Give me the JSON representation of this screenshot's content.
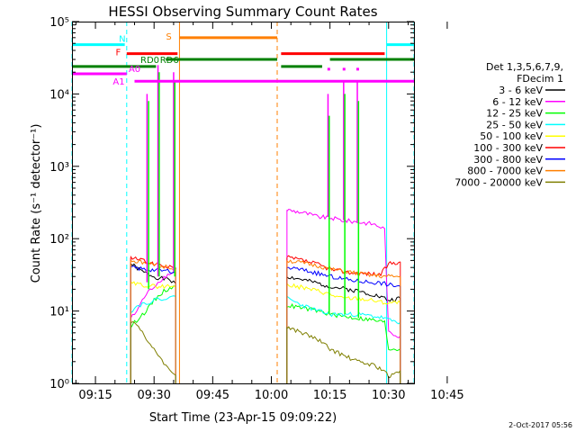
{
  "chart_data": {
    "type": "line",
    "title": "HESSI Observing Summary Count Rates",
    "xlabel": "Start Time (23-Apr-15 09:09:22)",
    "ylabel": "Count Rate (s⁻¹ detector⁻¹)",
    "yscale": "log",
    "ylim": [
      1,
      100000
    ],
    "xlim_minutes": [
      9.0,
      96.5
    ],
    "x_ticks": [
      "09:15",
      "09:30",
      "09:45",
      "10:00",
      "10:15",
      "10:30",
      "10:45"
    ],
    "x_tick_minutes": [
      15,
      30,
      45,
      60,
      75,
      90,
      105
    ],
    "y_ticks": [
      "10⁰",
      "10¹",
      "10²",
      "10³",
      "10⁴",
      "10⁵"
    ],
    "legend": {
      "header_lines": [
        "Det 1,3,5,6,7,9,",
        "FDecim 1"
      ],
      "placement": "right"
    },
    "series": [
      {
        "name": "3 - 6 keV",
        "color": "#000000",
        "segments": [
          [
            [
              24,
              45
            ],
            [
              27,
              35
            ],
            [
              30,
              30
            ],
            [
              32,
              28
            ],
            [
              34,
              27
            ],
            [
              35.5,
              24
            ]
          ],
          [
            [
              64,
              30
            ],
            [
              68,
              27
            ],
            [
              72,
              24
            ],
            [
              75,
              22
            ],
            [
              77,
              21
            ],
            [
              82,
              19
            ],
            [
              86,
              17
            ],
            [
              89,
              15
            ],
            [
              90,
              14
            ],
            [
              93,
              15
            ]
          ]
        ]
      },
      {
        "name": "6 - 12 keV",
        "color": "#ff00ff",
        "segments": [
          [
            [
              24,
              8
            ],
            [
              25,
              9
            ],
            [
              26,
              11
            ],
            [
              27,
              14
            ],
            [
              28,
              17
            ],
            [
              30,
              22
            ],
            [
              32,
              28
            ],
            [
              34,
              33
            ],
            [
              35.5,
              34
            ]
          ],
          [
            [
              64,
              250
            ],
            [
              68,
              230
            ],
            [
              72,
              200
            ],
            [
              75,
              195
            ],
            [
              78,
              180
            ],
            [
              82,
              170
            ],
            [
              86,
              160
            ],
            [
              88,
              145
            ],
            [
              89,
              135
            ],
            [
              90,
              5
            ],
            [
              93,
              4.5
            ]
          ]
        ]
      },
      {
        "name": "12 - 25 keV",
        "color": "#00ff00",
        "segments": [
          [
            [
              24,
              6
            ],
            [
              26,
              8
            ],
            [
              28,
              10
            ],
            [
              30,
              14
            ],
            [
              32,
              18
            ],
            [
              34,
              21
            ],
            [
              35.5,
              22
            ]
          ],
          [
            [
              64,
              12
            ],
            [
              68,
              11
            ],
            [
              72,
              10
            ],
            [
              75,
              9
            ],
            [
              78,
              8.5
            ],
            [
              82,
              8
            ],
            [
              86,
              7.5
            ],
            [
              89,
              7
            ],
            [
              90,
              3
            ],
            [
              93,
              3
            ]
          ]
        ]
      },
      {
        "name": "25 - 50 keV",
        "color": "#00ffff",
        "segments": [
          [
            [
              24,
              10
            ],
            [
              26,
              12
            ],
            [
              28,
              13
            ],
            [
              30,
              14
            ],
            [
              32,
              15
            ],
            [
              34,
              15
            ],
            [
              35.5,
              16
            ]
          ],
          [
            [
              64,
              15
            ],
            [
              68,
              12
            ],
            [
              72,
              10
            ],
            [
              75,
              9
            ],
            [
              78,
              9
            ],
            [
              82,
              9
            ],
            [
              86,
              8.5
            ],
            [
              89,
              8
            ],
            [
              90,
              7.5
            ],
            [
              93,
              7
            ]
          ]
        ]
      },
      {
        "name": "50 - 100 keV",
        "color": "#ffff00",
        "segments": [
          [
            [
              24,
              24
            ],
            [
              27,
              23
            ],
            [
              30,
              22
            ],
            [
              33,
              22
            ],
            [
              35.5,
              22
            ]
          ],
          [
            [
              64,
              23
            ],
            [
              68,
              21
            ],
            [
              72,
              19
            ],
            [
              75,
              17
            ],
            [
              78,
              15
            ],
            [
              82,
              15
            ],
            [
              86,
              14
            ],
            [
              89,
              13
            ],
            [
              90,
              13
            ],
            [
              93,
              13
            ]
          ]
        ]
      },
      {
        "name": "100 - 300 keV",
        "color": "#ff0000",
        "segments": [
          [
            [
              24,
              55
            ],
            [
              27,
              50
            ],
            [
              30,
              45
            ],
            [
              32,
              43
            ],
            [
              34,
              40
            ],
            [
              35.5,
              40
            ]
          ],
          [
            [
              64,
              55
            ],
            [
              68,
              50
            ],
            [
              72,
              44
            ],
            [
              75,
              38
            ],
            [
              77,
              36
            ],
            [
              80,
              34
            ],
            [
              84,
              33
            ],
            [
              88,
              32
            ],
            [
              90,
              45
            ],
            [
              93,
              48
            ]
          ]
        ]
      },
      {
        "name": "300 - 800 keV",
        "color": "#0000ff",
        "segments": [
          [
            [
              24,
              40
            ],
            [
              27,
              38
            ],
            [
              30,
              37
            ],
            [
              32,
              36
            ],
            [
              34,
              36
            ],
            [
              35.5,
              35
            ]
          ],
          [
            [
              64,
              40
            ],
            [
              68,
              37
            ],
            [
              72,
              33
            ],
            [
              75,
              30
            ],
            [
              78,
              28
            ],
            [
              82,
              26
            ],
            [
              86,
              25
            ],
            [
              89,
              24
            ],
            [
              90,
              23
            ],
            [
              93,
              22
            ]
          ]
        ]
      },
      {
        "name": "800 - 7000 keV",
        "color": "#ff7f00",
        "segments": [
          [
            [
              24,
              50
            ],
            [
              27,
              47
            ],
            [
              30,
              44
            ],
            [
              32,
              42
            ],
            [
              34,
              40
            ],
            [
              35.5,
              38
            ]
          ],
          [
            [
              64,
              50
            ],
            [
              68,
              46
            ],
            [
              72,
              42
            ],
            [
              75,
              38
            ],
            [
              78,
              36
            ],
            [
              82,
              33
            ],
            [
              86,
              31
            ],
            [
              89,
              30
            ],
            [
              90,
              30
            ],
            [
              93,
              30
            ]
          ]
        ]
      },
      {
        "name": "7000 - 20000 keV",
        "color": "#7f7f00",
        "segments": [
          [
            [
              24,
              7
            ],
            [
              26,
              6
            ],
            [
              28,
              4
            ],
            [
              30,
              3
            ],
            [
              32,
              2
            ],
            [
              34,
              1.6
            ],
            [
              35.5,
              1.3
            ]
          ],
          [
            [
              64,
              6
            ],
            [
              68,
              5
            ],
            [
              72,
              4
            ],
            [
              75,
              3
            ],
            [
              78,
              2.5
            ],
            [
              82,
              2
            ],
            [
              86,
              1.8
            ],
            [
              89,
              1.5
            ],
            [
              90,
              1.2
            ],
            [
              93,
              1.5
            ]
          ]
        ]
      }
    ],
    "spikes": [
      {
        "minute": 28.2,
        "color": "#ff00ff",
        "peak": 10000,
        "base": 25
      },
      {
        "minute": 28.6,
        "color": "#00ff00",
        "peak": 8000,
        "base": 20
      },
      {
        "minute": 31.0,
        "color": "#ff00ff",
        "peak": 25000,
        "base": 30
      },
      {
        "minute": 31.3,
        "color": "#00ff00",
        "peak": 20000,
        "base": 30
      },
      {
        "minute": 35.0,
        "color": "#ff00ff",
        "peak": 20000,
        "base": 35
      },
      {
        "minute": 35.3,
        "color": "#00ff00",
        "peak": 15000,
        "base": 30
      },
      {
        "minute": 74.5,
        "color": "#ff00ff",
        "peak": 10000,
        "base": 200
      },
      {
        "minute": 74.8,
        "color": "#00ff00",
        "peak": 5000,
        "base": 9
      },
      {
        "minute": 78.5,
        "color": "#ff00ff",
        "peak": 15000,
        "base": 180
      },
      {
        "minute": 78.8,
        "color": "#00ff00",
        "peak": 10000,
        "base": 9
      },
      {
        "minute": 82.0,
        "color": "#ff00ff",
        "peak": 15000,
        "base": 170
      },
      {
        "minute": 82.3,
        "color": "#00ff00",
        "peak": 8000,
        "base": 8
      }
    ],
    "flag_bars": [
      {
        "label": "N",
        "color": "#00ffff",
        "y": 48000,
        "segments": [
          [
            9,
            22.5
          ],
          [
            89.5,
            96.5
          ]
        ]
      },
      {
        "label": "S",
        "color": "#ff7f00",
        "y": 60000,
        "segments": [
          [
            36.5,
            61.5
          ]
        ]
      },
      {
        "label": "F",
        "color": "#ff0000",
        "y": 36000,
        "segments": [
          [
            23,
            36
          ],
          [
            62.5,
            89
          ]
        ]
      },
      {
        "label": "RD0",
        "color": "#008000",
        "y": 30000,
        "segments": [
          [
            33,
            61.5
          ],
          [
            75,
            96.5
          ]
        ]
      },
      {
        "label": "RD6",
        "color": "#008000",
        "y": 24000,
        "segments": [
          [
            9,
            30.5
          ],
          [
            62.5,
            73
          ]
        ]
      },
      {
        "label": "A0",
        "color": "#ff00ff",
        "y": 19000,
        "segments": [
          [
            9,
            23
          ]
        ]
      },
      {
        "label": "A1",
        "color": "#ff00ff",
        "y": 15000,
        "segments": [
          [
            25,
            96.5
          ]
        ]
      }
    ],
    "markers": [
      {
        "minute": 74.7,
        "color": "#ff00ff"
      },
      {
        "minute": 78.6,
        "color": "#ff00ff"
      },
      {
        "minute": 82.1,
        "color": "#ff00ff"
      }
    ],
    "vlines": [
      {
        "minute": 9.0,
        "color": "#00ffff",
        "style": "dashed"
      },
      {
        "minute": 23.0,
        "color": "#00ffff",
        "style": "dashed"
      },
      {
        "minute": 36.5,
        "color": "#ff7f00",
        "style": "solid"
      },
      {
        "minute": 61.5,
        "color": "#ff7f00",
        "style": "dashed"
      },
      {
        "minute": 89.5,
        "color": "#00ffff",
        "style": "solid"
      },
      {
        "minute": 96.5,
        "color": "#00ffff",
        "style": "dashed"
      }
    ],
    "grid": false
  },
  "footer": {
    "date": "2-Oct-2017 05:56"
  }
}
